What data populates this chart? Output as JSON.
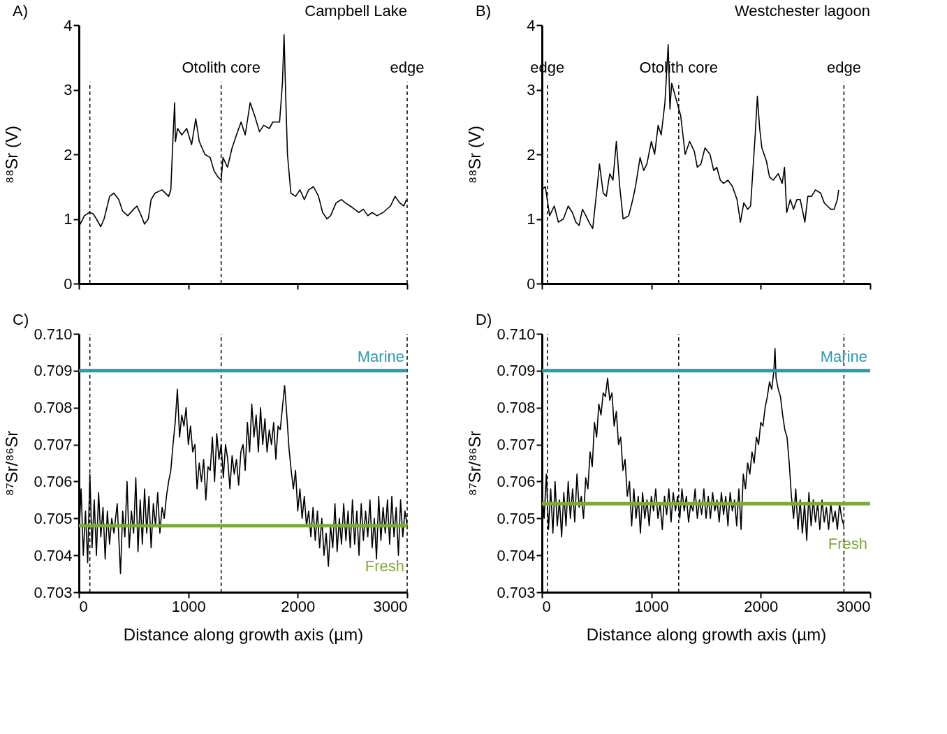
{
  "chart_data": [
    {
      "type": "line",
      "title": "A)",
      "subtitle": "Campbell Lake",
      "ylabel": "⁸⁸Sr (V)",
      "tick_labels": "y",
      "grid": false,
      "line_style": "solid",
      "xlim": [
        0,
        3000
      ],
      "xticks": [
        0,
        1000,
        2000,
        3000
      ],
      "ylim": [
        0,
        4
      ],
      "yticks": [
        0,
        1,
        2,
        3,
        4
      ],
      "x": [
        0,
        12,
        50,
        95,
        130,
        160,
        199,
        230,
        281,
        320,
        364,
        400,
        447,
        500,
        530,
        570,
        600,
        634,
        660,
        696,
        760,
        820,
        840,
        861,
        875,
        882,
        902,
        940,
        985,
        1030,
        1068,
        1100,
        1151,
        1200,
        1234,
        1270,
        1300,
        1317,
        1358,
        1400,
        1440,
        1482,
        1520,
        1565,
        1606,
        1650,
        1689,
        1740,
        1772,
        1834,
        1860,
        1875,
        1890,
        1906,
        1937,
        1980,
        2020,
        2060,
        2100,
        2144,
        2190,
        2227,
        2268,
        2300,
        2351,
        2400,
        2434,
        2480,
        2520,
        2558,
        2600,
        2641,
        2680,
        2724,
        2780,
        2848,
        2890,
        2931,
        2970,
        2993
      ],
      "series": [
        {
          "color": "#000000",
          "values": [
            0.95,
            0.92,
            1.05,
            1.1,
            1.08,
            1.0,
            0.88,
            1.0,
            1.35,
            1.4,
            1.3,
            1.12,
            1.05,
            1.15,
            1.2,
            1.05,
            0.92,
            1.0,
            1.3,
            1.4,
            1.45,
            1.35,
            1.45,
            2.3,
            2.8,
            2.2,
            2.4,
            2.3,
            2.4,
            2.15,
            2.55,
            2.2,
            2.0,
            1.95,
            1.75,
            1.65,
            1.6,
            1.95,
            1.8,
            2.1,
            2.3,
            2.5,
            2.3,
            2.8,
            2.6,
            2.35,
            2.45,
            2.4,
            2.5,
            2.5,
            3.1,
            3.85,
            2.9,
            2.0,
            1.4,
            1.35,
            1.45,
            1.3,
            1.45,
            1.5,
            1.35,
            1.1,
            1.0,
            1.05,
            1.25,
            1.3,
            1.25,
            1.2,
            1.15,
            1.1,
            1.15,
            1.05,
            1.1,
            1.05,
            1.1,
            1.2,
            1.35,
            1.25,
            1.2,
            1.3
          ]
        }
      ],
      "ref_lines": [
        {
          "axis": "x",
          "value": 100,
          "color": "#000000",
          "line_style": "dashed"
        },
        {
          "axis": "x",
          "value": 1300,
          "label": "Otolith core",
          "color": "#000000",
          "line_style": "dashed"
        },
        {
          "axis": "x",
          "value": 3000,
          "label": "edge",
          "color": "#000000",
          "line_style": "dashed"
        }
      ]
    },
    {
      "type": "line",
      "title": "B)",
      "subtitle": "Westchester lagoon",
      "ylabel": "⁸⁸Sr (V)",
      "tick_labels": "y",
      "grid": false,
      "line_style": "solid",
      "xlim": [
        0,
        3000
      ],
      "xticks": [
        0,
        1000,
        2000,
        3000
      ],
      "ylim": [
        0,
        4
      ],
      "yticks": [
        0,
        1,
        2,
        3,
        4
      ],
      "x": [
        0,
        31,
        70,
        113,
        150,
        196,
        240,
        278,
        310,
        340,
        370,
        402,
        430,
        464,
        505,
        526,
        560,
        588,
        620,
        649,
        680,
        711,
        742,
        793,
        830,
        855,
        897,
        930,
        959,
        1000,
        1030,
        1062,
        1090,
        1124,
        1154,
        1170,
        1186,
        1227,
        1268,
        1309,
        1350,
        1392,
        1420,
        1453,
        1490,
        1536,
        1570,
        1598,
        1630,
        1660,
        1700,
        1742,
        1783,
        1814,
        1845,
        1880,
        1907,
        1949,
        1969,
        1990,
        2010,
        2051,
        2080,
        2113,
        2160,
        2196,
        2217,
        2237,
        2270,
        2299,
        2330,
        2361,
        2403,
        2430,
        2464,
        2500,
        2547,
        2580,
        2609,
        2640,
        2671,
        2700,
        2712
      ],
      "series": [
        {
          "color": "#000000",
          "values": [
            1.45,
            1.5,
            1.05,
            1.2,
            0.95,
            1.0,
            1.2,
            1.1,
            0.95,
            0.9,
            1.15,
            1.05,
            0.95,
            0.85,
            1.5,
            1.85,
            1.4,
            1.35,
            1.7,
            1.6,
            2.2,
            1.5,
            1.0,
            1.05,
            1.3,
            1.5,
            1.95,
            1.75,
            1.85,
            2.2,
            2.0,
            2.45,
            2.3,
            2.8,
            3.7,
            2.7,
            3.1,
            2.85,
            2.6,
            2.0,
            2.2,
            2.05,
            1.8,
            1.85,
            2.1,
            2.0,
            1.75,
            1.8,
            1.6,
            1.55,
            1.6,
            1.5,
            1.3,
            0.95,
            1.25,
            1.15,
            1.2,
            2.3,
            2.9,
            2.4,
            2.1,
            1.9,
            1.65,
            1.6,
            1.7,
            1.55,
            1.8,
            1.1,
            1.3,
            1.15,
            1.3,
            1.3,
            0.95,
            1.35,
            1.35,
            1.45,
            1.4,
            1.25,
            1.2,
            1.15,
            1.15,
            1.3,
            1.45
          ]
        }
      ],
      "ref_lines": [
        {
          "axis": "x",
          "value": 50,
          "label": "edge",
          "color": "#000000",
          "line_style": "dashed"
        },
        {
          "axis": "x",
          "value": 1250,
          "label": "Otolith core",
          "color": "#000000",
          "line_style": "dashed"
        },
        {
          "axis": "x",
          "value": 2760,
          "label": "edge",
          "color": "#000000",
          "line_style": "dashed"
        }
      ]
    },
    {
      "type": "line",
      "title": "C)",
      "xlabel": "Distance along growth axis (µm)",
      "ylabel": "⁸⁷Sr/⁸⁶Sr",
      "grid": false,
      "line_style": "solid",
      "xlim": [
        0,
        3000
      ],
      "xticks": [
        0,
        1000,
        2000,
        3000
      ],
      "ylim": [
        0.703,
        0.71
      ],
      "yticks": [
        0.703,
        0.704,
        0.705,
        0.706,
        0.707,
        0.708,
        0.709,
        {
          "value": 0.71,
          "label": "0.710"
        }
      ],
      "x": [
        0,
        20,
        40,
        60,
        80,
        100,
        120,
        140,
        160,
        180,
        200,
        220,
        240,
        260,
        280,
        300,
        320,
        350,
        380,
        400,
        420,
        440,
        460,
        480,
        500,
        520,
        540,
        560,
        580,
        600,
        620,
        640,
        660,
        680,
        700,
        720,
        740,
        760,
        780,
        800,
        820,
        840,
        860,
        880,
        900,
        920,
        940,
        960,
        980,
        1000,
        1020,
        1040,
        1060,
        1080,
        1100,
        1120,
        1140,
        1160,
        1180,
        1200,
        1220,
        1240,
        1260,
        1280,
        1300,
        1320,
        1340,
        1360,
        1380,
        1400,
        1420,
        1440,
        1460,
        1480,
        1500,
        1520,
        1540,
        1560,
        1580,
        1600,
        1620,
        1640,
        1660,
        1680,
        1700,
        1720,
        1740,
        1760,
        1780,
        1800,
        1820,
        1840,
        1860,
        1880,
        1900,
        1920,
        1940,
        1960,
        1980,
        2000,
        2020,
        2040,
        2060,
        2080,
        2100,
        2120,
        2140,
        2160,
        2180,
        2200,
        2220,
        2240,
        2260,
        2280,
        2300,
        2320,
        2340,
        2360,
        2380,
        2400,
        2420,
        2440,
        2460,
        2480,
        2500,
        2520,
        2540,
        2560,
        2580,
        2600,
        2620,
        2640,
        2660,
        2680,
        2700,
        2720,
        2740,
        2760,
        2780,
        2800,
        2820,
        2840,
        2860,
        2880,
        2900,
        2920,
        2940,
        2960,
        2980,
        3000
      ],
      "series": [
        {
          "color": "#000000",
          "values": [
            0.7045,
            0.7058,
            0.704,
            0.7052,
            0.7038,
            0.7062,
            0.7042,
            0.7055,
            0.704,
            0.7057,
            0.7045,
            0.7053,
            0.7039,
            0.7052,
            0.7043,
            0.705,
            0.7046,
            0.7054,
            0.7035,
            0.7052,
            0.7045,
            0.706,
            0.7042,
            0.7052,
            0.7046,
            0.7061,
            0.7041,
            0.7055,
            0.7043,
            0.7058,
            0.7046,
            0.7056,
            0.7042,
            0.7054,
            0.7048,
            0.7057,
            0.7046,
            0.7053,
            0.705,
            0.7056,
            0.706,
            0.7063,
            0.707,
            0.7076,
            0.7085,
            0.7072,
            0.7078,
            0.7075,
            0.708,
            0.707,
            0.7075,
            0.7068,
            0.707,
            0.7058,
            0.7065,
            0.706,
            0.7066,
            0.7055,
            0.7064,
            0.7063,
            0.7072,
            0.706,
            0.7073,
            0.7066,
            0.707,
            0.7061,
            0.707,
            0.7066,
            0.7058,
            0.7067,
            0.7062,
            0.7066,
            0.7059,
            0.7068,
            0.707,
            0.7063,
            0.7076,
            0.7068,
            0.7081,
            0.7072,
            0.7078,
            0.7068,
            0.708,
            0.707,
            0.7077,
            0.7068,
            0.7074,
            0.707,
            0.7076,
            0.7066,
            0.7075,
            0.7074,
            0.708,
            0.7086,
            0.7078,
            0.7069,
            0.7063,
            0.7058,
            0.7063,
            0.7052,
            0.7058,
            0.705,
            0.7056,
            0.7048,
            0.7052,
            0.7045,
            0.7053,
            0.7044,
            0.7052,
            0.7042,
            0.705,
            0.704,
            0.7046,
            0.7037,
            0.7048,
            0.7042,
            0.7054,
            0.7041,
            0.705,
            0.7043,
            0.7054,
            0.7044,
            0.7052,
            0.7042,
            0.7055,
            0.7043,
            0.7052,
            0.704,
            0.7054,
            0.7044,
            0.7052,
            0.7045,
            0.7055,
            0.7042,
            0.705,
            0.7039,
            0.7056,
            0.7044,
            0.7053,
            0.7046,
            0.7055,
            0.7043,
            0.7056,
            0.7045,
            0.7053,
            0.704,
            0.7055,
            0.7045,
            0.7052,
            0.7048
          ]
        }
      ],
      "ref_lines": [
        {
          "axis": "x",
          "value": 100,
          "color": "#000000",
          "line_style": "dashed"
        },
        {
          "axis": "x",
          "value": 1300,
          "color": "#000000",
          "line_style": "dashed"
        },
        {
          "axis": "x",
          "value": 3000,
          "color": "#000000",
          "line_style": "dashed"
        },
        {
          "axis": "y",
          "value": 0.709,
          "label": "Marine",
          "color": "#2a97b5",
          "line_style": "solid"
        },
        {
          "axis": "y",
          "value": 0.7048,
          "label": "Fresh",
          "color": "#7ea83b",
          "line_style": "solid"
        }
      ]
    },
    {
      "type": "line",
      "title": "D)",
      "xlabel": "Distance along growth axis (µm)",
      "ylabel": "⁸⁷Sr/⁸⁶Sr",
      "grid": false,
      "line_style": "solid",
      "xlim": [
        0,
        3000
      ],
      "xticks": [
        0,
        1000,
        2000,
        3000
      ],
      "ylim": [
        0.703,
        0.71
      ],
      "yticks": [
        0.703,
        0.704,
        0.705,
        0.706,
        0.707,
        0.708,
        0.709,
        {
          "value": 0.71,
          "label": "0.710"
        }
      ],
      "x": [
        0,
        20,
        40,
        60,
        80,
        100,
        120,
        140,
        160,
        180,
        200,
        220,
        240,
        260,
        280,
        300,
        320,
        340,
        360,
        380,
        400,
        420,
        440,
        460,
        480,
        500,
        520,
        540,
        560,
        580,
        600,
        620,
        640,
        660,
        680,
        700,
        720,
        740,
        760,
        780,
        800,
        820,
        840,
        860,
        880,
        900,
        920,
        940,
        960,
        980,
        1000,
        1020,
        1040,
        1060,
        1080,
        1100,
        1120,
        1140,
        1160,
        1180,
        1200,
        1220,
        1240,
        1260,
        1280,
        1300,
        1320,
        1340,
        1360,
        1380,
        1400,
        1420,
        1440,
        1460,
        1480,
        1500,
        1520,
        1540,
        1560,
        1580,
        1600,
        1620,
        1640,
        1660,
        1680,
        1700,
        1720,
        1740,
        1760,
        1780,
        1800,
        1820,
        1840,
        1860,
        1880,
        1900,
        1920,
        1940,
        1960,
        1980,
        2000,
        2020,
        2040,
        2060,
        2080,
        2100,
        2120,
        2130,
        2140,
        2160,
        2180,
        2200,
        2220,
        2240,
        2260,
        2280,
        2300,
        2320,
        2340,
        2360,
        2380,
        2400,
        2420,
        2440,
        2460,
        2480,
        2500,
        2520,
        2540,
        2560,
        2580,
        2600,
        2620,
        2640,
        2660,
        2680,
        2700,
        2720,
        2740,
        2760
      ],
      "series": [
        {
          "color": "#000000",
          "values": [
            0.7058,
            0.705,
            0.7062,
            0.7047,
            0.7058,
            0.7046,
            0.706,
            0.7048,
            0.7055,
            0.7045,
            0.7057,
            0.7048,
            0.706,
            0.705,
            0.7058,
            0.7049,
            0.7062,
            0.7053,
            0.7056,
            0.705,
            0.7061,
            0.7058,
            0.7068,
            0.7064,
            0.7076,
            0.7072,
            0.7081,
            0.7078,
            0.7084,
            0.7083,
            0.7088,
            0.7082,
            0.7084,
            0.7075,
            0.7079,
            0.707,
            0.7072,
            0.7063,
            0.7066,
            0.7056,
            0.706,
            0.7048,
            0.7058,
            0.705,
            0.7056,
            0.7046,
            0.7057,
            0.705,
            0.7055,
            0.7048,
            0.7056,
            0.7052,
            0.7058,
            0.705,
            0.7054,
            0.7047,
            0.7056,
            0.7051,
            0.7058,
            0.7049,
            0.7057,
            0.7052,
            0.7056,
            0.705,
            0.7058,
            0.7052,
            0.7056,
            0.7049,
            0.7054,
            0.7052,
            0.7058,
            0.705,
            0.7055,
            0.7051,
            0.7058,
            0.705,
            0.7056,
            0.705,
            0.7057,
            0.7052,
            0.7055,
            0.7049,
            0.7057,
            0.7051,
            0.7056,
            0.7048,
            0.7057,
            0.7052,
            0.7055,
            0.7048,
            0.7058,
            0.7047,
            0.7062,
            0.7058,
            0.7065,
            0.7062,
            0.7068,
            0.7065,
            0.7072,
            0.707,
            0.7076,
            0.7075,
            0.708,
            0.7083,
            0.7087,
            0.7085,
            0.709,
            0.7096,
            0.7088,
            0.7085,
            0.7083,
            0.7078,
            0.7074,
            0.7072,
            0.7065,
            0.7056,
            0.705,
            0.7058,
            0.7047,
            0.7055,
            0.7046,
            0.7054,
            0.7044,
            0.7057,
            0.7048,
            0.7055,
            0.7049,
            0.7054,
            0.7047,
            0.7055,
            0.7049,
            0.7053,
            0.7047,
            0.7054,
            0.7049,
            0.7052,
            0.7047,
            0.7054,
            0.705,
            0.7048
          ]
        }
      ],
      "ref_lines": [
        {
          "axis": "x",
          "value": 50,
          "color": "#000000",
          "line_style": "dashed"
        },
        {
          "axis": "x",
          "value": 1250,
          "color": "#000000",
          "line_style": "dashed"
        },
        {
          "axis": "x",
          "value": 2760,
          "color": "#000000",
          "line_style": "dashed"
        },
        {
          "axis": "y",
          "value": 0.709,
          "label": "Marine",
          "color": "#2a97b5",
          "line_style": "solid"
        },
        {
          "axis": "y",
          "value": 0.7054,
          "label": "Fresh",
          "color": "#7ea83b",
          "line_style": "solid"
        }
      ]
    }
  ]
}
